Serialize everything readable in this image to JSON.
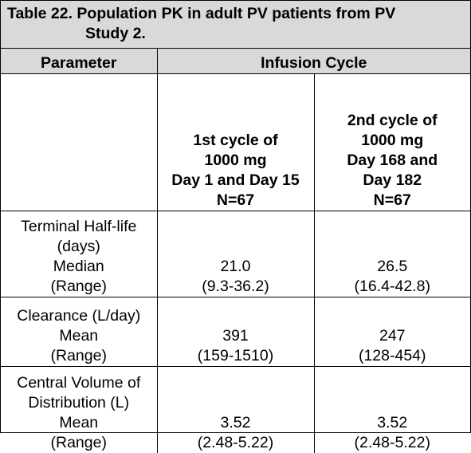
{
  "title": {
    "line1": "Table 22. Population PK in adult PV patients from PV",
    "line2": "Study 2."
  },
  "header": {
    "parameter": "Parameter",
    "infusion_cycle": "Infusion Cycle"
  },
  "subheader": {
    "cycle1": [
      "1st cycle of",
      "1000 mg",
      "Day 1 and Day 15",
      "N=67"
    ],
    "cycle2": [
      "2nd cycle of",
      "1000 mg",
      "Day 168 and",
      "Day 182",
      "N=67"
    ]
  },
  "rows": [
    {
      "parameter": [
        "Terminal Half-life",
        "(days)",
        "Median",
        "(Range)"
      ],
      "cycle1": [
        "21.0",
        "(9.3-36.2)"
      ],
      "cycle2": [
        "26.5",
        "(16.4-42.8)"
      ]
    },
    {
      "parameter": [
        "Clearance (L/day)",
        "Mean",
        "(Range)"
      ],
      "cycle1": [
        "391",
        "(159-1510)"
      ],
      "cycle2": [
        "247",
        "(128-454)"
      ]
    },
    {
      "parameter": [
        "Central Volume of",
        "Distribution (L)",
        "Mean",
        "(Range)"
      ],
      "cycle1": [
        "3.52",
        "(2.48-5.22)"
      ],
      "cycle2": [
        "3.52",
        "(2.48-5.22)"
      ]
    }
  ],
  "colors": {
    "header_background": "#d9d9d9",
    "border": "#000000"
  }
}
